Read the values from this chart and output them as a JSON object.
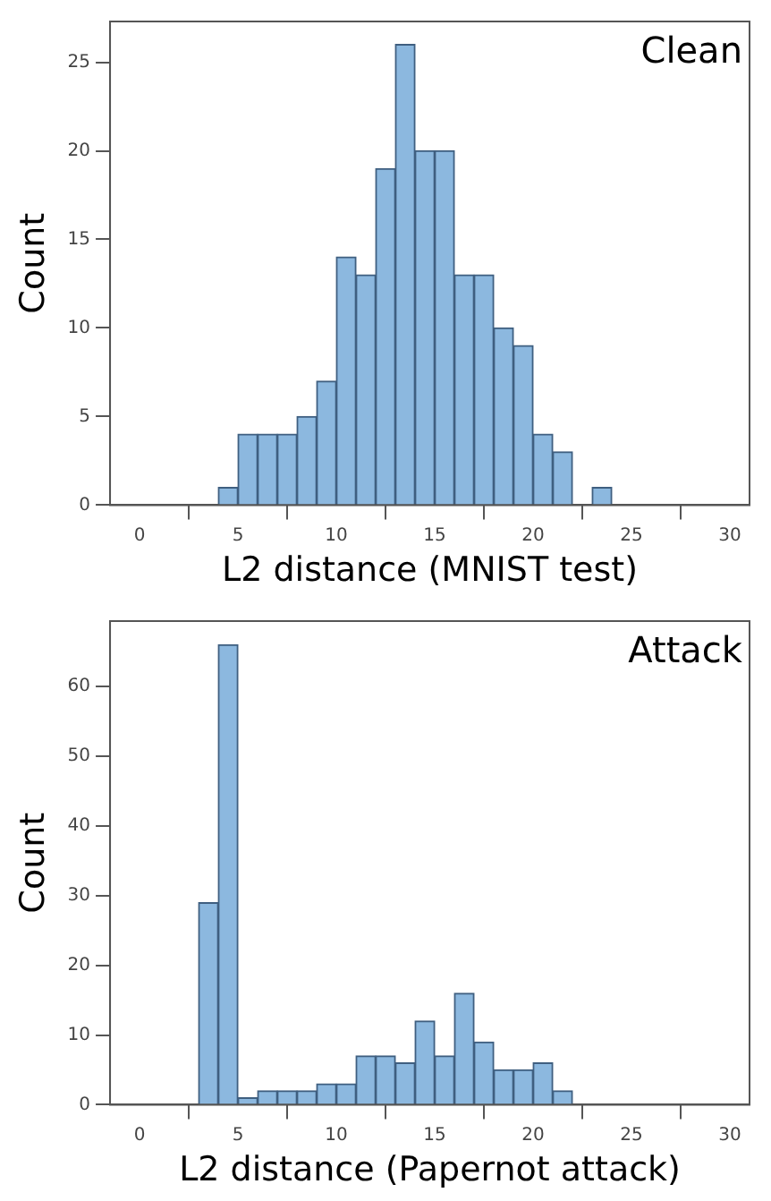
{
  "chart_data": [
    {
      "type": "histogram",
      "xlabel": "L2 distance (MNIST test)",
      "ylabel": "Count",
      "annotations": [
        "Clean"
      ],
      "bins": [
        4,
        5,
        6,
        7,
        8,
        9,
        10,
        11,
        12,
        13,
        14,
        15,
        16,
        17,
        18,
        19,
        20,
        21,
        22,
        23,
        24
      ],
      "values": [
        1,
        4,
        4,
        4,
        5,
        7,
        14,
        13,
        19,
        26,
        20,
        20,
        13,
        13,
        10,
        9,
        4,
        3,
        0,
        1
      ],
      "color": "#8cb8df",
      "xlim": [
        -1.5,
        31
      ],
      "ylim": [
        0,
        27.3
      ],
      "xticks": [
        0,
        5,
        10,
        15,
        20,
        25,
        30
      ],
      "yticks": [
        0,
        5,
        10,
        15,
        20,
        25
      ],
      "grid": false
    },
    {
      "type": "histogram",
      "xlabel": "L2 distance (Papernot attack)",
      "ylabel": "Count",
      "annotations": [
        "Attack"
      ],
      "bins": [
        3,
        4,
        5,
        6,
        7,
        8,
        9,
        10,
        11,
        12,
        13,
        14,
        15,
        16,
        17,
        18,
        19,
        20,
        21,
        22
      ],
      "values": [
        29,
        66,
        1,
        2,
        2,
        2,
        3,
        3,
        7,
        7,
        6,
        12,
        7,
        16,
        9,
        5,
        5,
        6,
        2
      ],
      "color": "#8cb8df",
      "xlim": [
        -1.5,
        31
      ],
      "ylim": [
        0,
        69.4
      ],
      "xticks": [
        0,
        5,
        10,
        15,
        20,
        25,
        30
      ],
      "yticks": [
        0,
        10,
        20,
        30,
        40,
        50,
        60
      ],
      "grid": false
    }
  ]
}
